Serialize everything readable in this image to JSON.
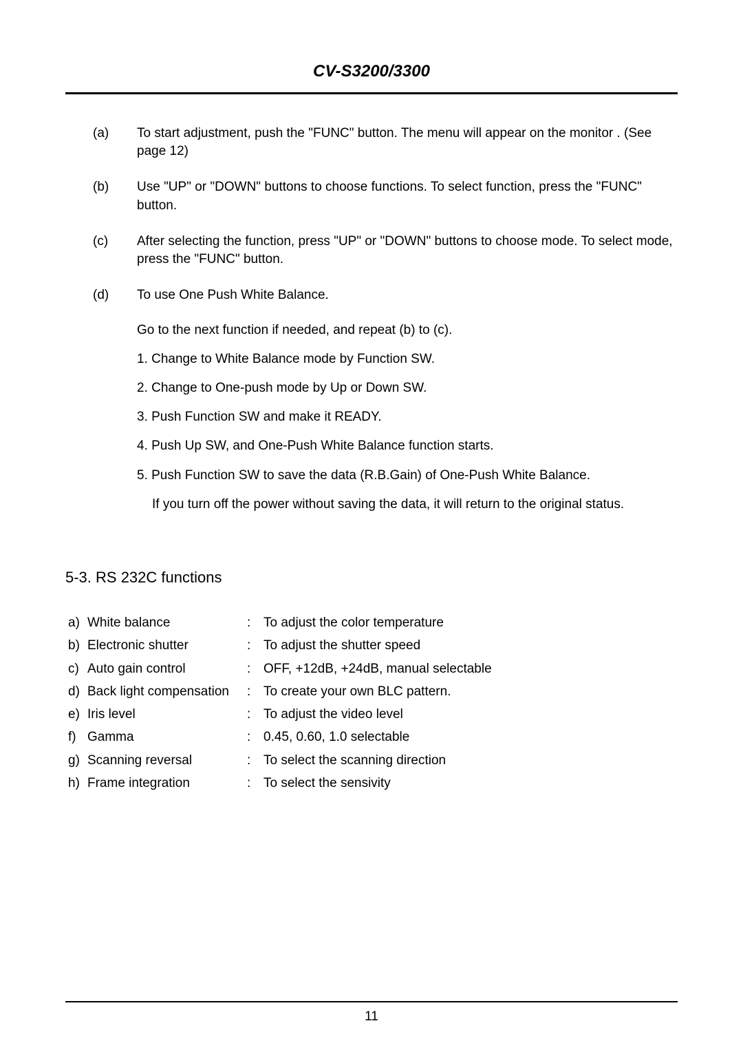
{
  "header": {
    "title": "CV-S3200/3300"
  },
  "instructions": [
    {
      "label": "(a)",
      "body": "To start adjustment, push the \"FUNC\" button. The menu will appear on the monitor . (See page 12)"
    },
    {
      "label": "(b)",
      "body": "Use \"UP\" or \"DOWN\" buttons to choose functions.  To select function, press the \"FUNC\" button."
    },
    {
      "label": "(c)",
      "body": "After selecting the function, press \"UP\" or \"DOWN\" buttons to choose mode.  To select mode, press the \"FUNC\" button."
    },
    {
      "label": "(d)",
      "body": "To use One Push White Balance.",
      "sub": [
        "Go to the next function if needed, and repeat (b) to (c).",
        "1. Change to White Balance mode by Function SW.",
        "2. Change to One-push mode by Up or Down SW.",
        "3. Push Function SW and make it READY.",
        "4. Push Up SW, and One-Push White Balance function starts.",
        "5. Push Function SW to save the data (R.B.Gain) of One-Push White Balance."
      ],
      "sub_note": "If you turn off the power without saving the data, it will return to the original status."
    }
  ],
  "section_heading": "5-3. RS 232C functions",
  "functions": [
    {
      "l": "a)",
      "name": "White balance",
      "desc": "To adjust the color temperature"
    },
    {
      "l": "b)",
      "name": "Electronic shutter",
      "desc": "To adjust the shutter speed"
    },
    {
      "l": "c)",
      "name": "Auto gain control",
      "desc": "OFF, +12dB, +24dB, manual selectable"
    },
    {
      "l": "d)",
      "name": "Back light compensation",
      "desc": "To create your own BLC pattern."
    },
    {
      "l": "e)",
      "name": "Iris level",
      "desc": "To adjust the video level"
    },
    {
      "l": "f)",
      "name": "Gamma",
      "desc": "0.45, 0.60, 1.0 selectable"
    },
    {
      "l": "g)",
      "name": "Scanning reversal",
      "desc": "To select the scanning direction"
    },
    {
      "l": "h)",
      "name": "Frame integration",
      "desc": "To select the sensivity"
    }
  ],
  "colon": ":",
  "page_number": "11"
}
